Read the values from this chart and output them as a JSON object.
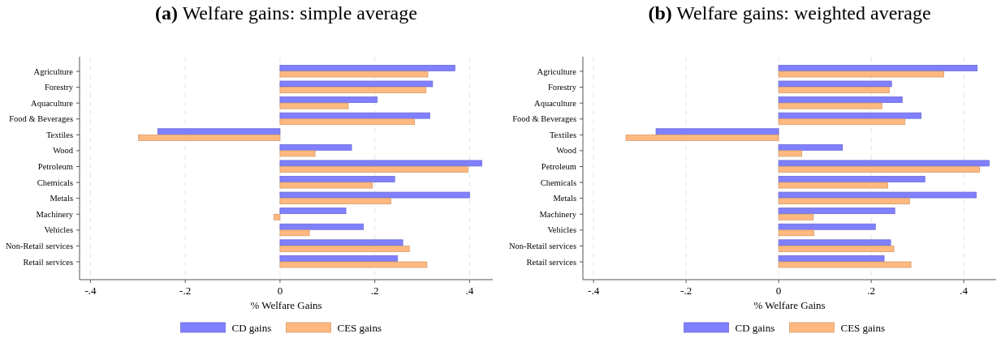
{
  "chart_data": [
    {
      "type": "bar",
      "orientation": "horizontal",
      "title": "(a) Welfare gains: simple average",
      "xlabel": "% Welfare Gains",
      "categories": [
        "Agriculture",
        "Forestry",
        "Aquaculture",
        "Food & Beverages",
        "Textiles",
        "Wood",
        "Petroleum",
        "Chemicals",
        "Metals",
        "Machinery",
        "Vehicles",
        "Non-Retail services",
        "Retail services"
      ],
      "series": [
        {
          "name": "CD gains",
          "color": "#8080ff",
          "values": [
            0.369,
            0.322,
            0.205,
            0.316,
            -0.258,
            0.151,
            0.426,
            0.242,
            0.4,
            0.139,
            0.176,
            0.259,
            0.248
          ]
        },
        {
          "name": "CES gains",
          "color": "#ffb980",
          "values": [
            0.312,
            0.308,
            0.144,
            0.284,
            -0.299,
            0.074,
            0.397,
            0.195,
            0.234,
            -0.013,
            0.062,
            0.273,
            0.31
          ]
        }
      ],
      "xlim": [
        -0.423,
        0.449
      ],
      "xticks": [
        {
          "value": -0.4,
          "label": "-.4"
        },
        {
          "value": -0.2,
          "label": "-.2"
        },
        0,
        {
          "value": 0.2,
          "label": ".2"
        },
        {
          "value": 0.4,
          "label": ".4"
        }
      ],
      "grid": "x",
      "legend": "bottom"
    },
    {
      "type": "bar",
      "orientation": "horizontal",
      "title": "(b) Welfare gains: weighted average",
      "xlabel": "% Welfare Gains",
      "categories": [
        "Agriculture",
        "Forestry",
        "Aquaculture",
        "Food & Beverages",
        "Textiles",
        "Wood",
        "Petroleum",
        "Chemicals",
        "Metals",
        "Machinery",
        "Vehicles",
        "Non-Retail services",
        "Retail services"
      ],
      "series": [
        {
          "name": "CD gains",
          "color": "#8080ff",
          "values": [
            0.429,
            0.244,
            0.267,
            0.308,
            -0.265,
            0.138,
            0.455,
            0.316,
            0.427,
            0.251,
            0.209,
            0.242,
            0.228
          ]
        },
        {
          "name": "CES gains",
          "color": "#ffb980",
          "values": [
            0.357,
            0.239,
            0.223,
            0.273,
            -0.33,
            0.05,
            0.434,
            0.236,
            0.283,
            0.075,
            0.076,
            0.249,
            0.286
          ]
        }
      ],
      "xlim": [
        -0.423,
        0.47
      ],
      "xticks": [
        {
          "value": -0.4,
          "label": "-.4"
        },
        {
          "value": -0.2,
          "label": "-.2"
        },
        0,
        {
          "value": 0.2,
          "label": ".2"
        },
        {
          "value": 0.4,
          "label": ".4"
        }
      ],
      "grid": "x",
      "legend": "bottom"
    }
  ]
}
